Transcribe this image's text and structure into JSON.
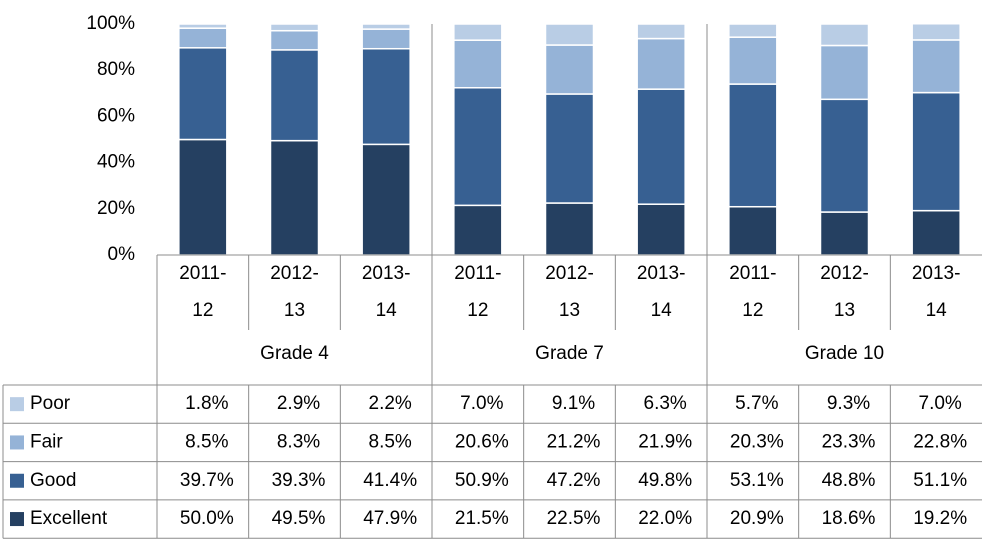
{
  "chart_data": {
    "type": "stacked-bar",
    "categories": [
      "2011-12",
      "2012-13",
      "2013-14",
      "2011-12",
      "2012-13",
      "2013-14",
      "2011-12",
      "2012-13",
      "2013-14"
    ],
    "groups": [
      "Grade 4",
      "Grade 7",
      "Grade 10"
    ],
    "ylim": [
      0,
      100
    ],
    "yticks": [
      {
        "value": 0,
        "label": "0%"
      },
      {
        "value": 20,
        "label": "20%"
      },
      {
        "value": 40,
        "label": "40%"
      },
      {
        "value": 60,
        "label": "60%"
      },
      {
        "value": 80,
        "label": "80%"
      },
      {
        "value": 100,
        "label": "100%"
      }
    ],
    "series": [
      {
        "name": "Poor",
        "color": "#b9cde5",
        "values": [
          1.8,
          2.9,
          2.2,
          7.0,
          9.1,
          6.3,
          5.7,
          9.3,
          7.0
        ],
        "value_labels": [
          "1.8%",
          "2.9%",
          "2.2%",
          "7.0%",
          "9.1%",
          "6.3%",
          "5.7%",
          "9.3%",
          "7.0%"
        ]
      },
      {
        "name": "Fair",
        "color": "#95b3d7",
        "values": [
          8.5,
          8.3,
          8.5,
          20.6,
          21.2,
          21.9,
          20.3,
          23.3,
          22.8
        ],
        "value_labels": [
          "8.5%",
          "8.3%",
          "8.5%",
          "20.6%",
          "21.2%",
          "21.9%",
          "20.3%",
          "23.3%",
          "22.8%"
        ]
      },
      {
        "name": "Good",
        "color": "#376092",
        "values": [
          39.7,
          39.3,
          41.4,
          50.9,
          47.2,
          49.8,
          53.1,
          48.8,
          51.1
        ],
        "value_labels": [
          "39.7%",
          "39.3%",
          "41.4%",
          "50.9%",
          "47.2%",
          "49.8%",
          "53.1%",
          "48.8%",
          "51.1%"
        ]
      },
      {
        "name": "Excellent",
        "color": "#254061",
        "values": [
          50.0,
          49.5,
          47.9,
          21.5,
          22.5,
          22.0,
          20.9,
          18.6,
          19.2
        ],
        "value_labels": [
          "50.0%",
          "49.5%",
          "47.9%",
          "21.5%",
          "22.5%",
          "22.0%",
          "20.9%",
          "18.6%",
          "19.2%"
        ]
      }
    ]
  }
}
